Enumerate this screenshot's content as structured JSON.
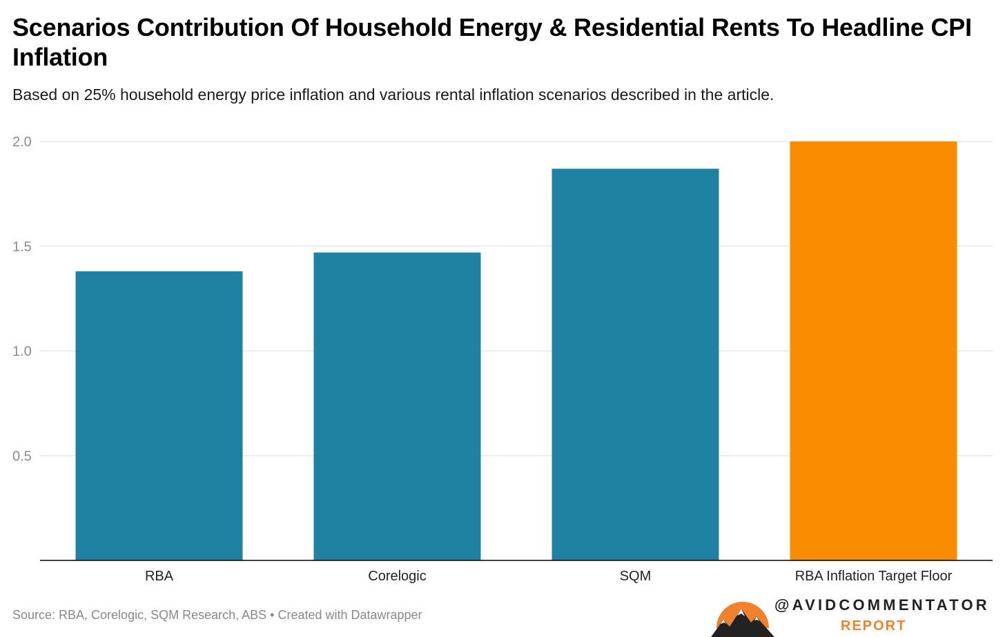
{
  "chart_data": {
    "type": "bar",
    "title": "Scenarios Contribution Of Household Energy & Residential Rents To Headline CPI Inflation",
    "subtitle": "Based on 25% household energy price inflation and various rental inflation scenarios described in the article.",
    "categories": [
      "RBA",
      "Corelogic",
      "SQM",
      "RBA Inflation Target Floor"
    ],
    "values": [
      1.38,
      1.47,
      1.87,
      2.0
    ],
    "bar_colors": [
      "#1f82a3",
      "#1f82a3",
      "#1f82a3",
      "#f98c00"
    ],
    "ylim": [
      0,
      2.0
    ],
    "yticks": [
      "0.5",
      "1.0",
      "1.5",
      "2.0"
    ],
    "ytick_values": [
      0.5,
      1.0,
      1.5,
      2.0
    ],
    "grid": true,
    "xlabel": "",
    "ylabel": ""
  },
  "footer": {
    "source": "Source: RBA, Corelogic, SQM Research, ABS • Created with Datawrapper"
  },
  "logo": {
    "handle": "@AVIDCOMMENTATOR",
    "report": "REPORT",
    "accent_color": "#f0812e"
  }
}
